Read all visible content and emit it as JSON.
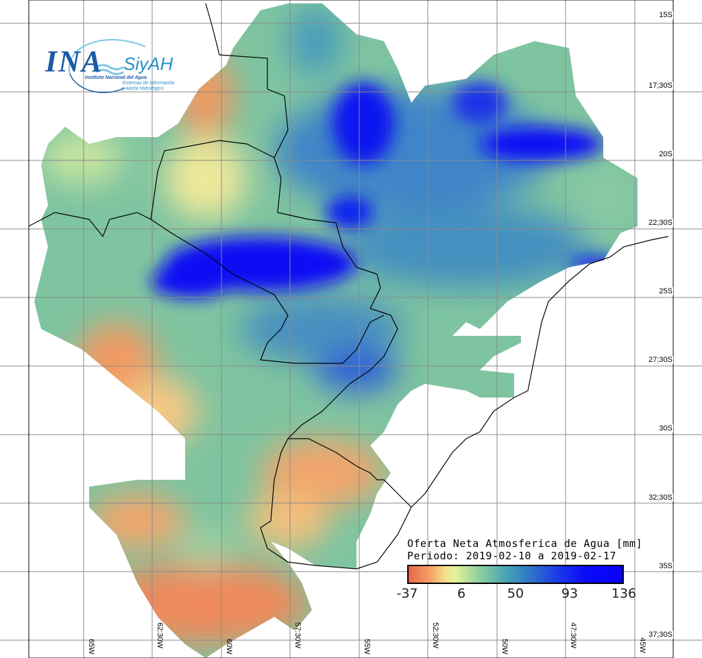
{
  "logo": {
    "acronym": "INA",
    "product": "SiyAH",
    "institute": "Instituto Nacional del Agua",
    "system_line1": "Sistemas de información",
    "system_line2": "y Alerta Hidrológico"
  },
  "legend": {
    "title": "Oferta Neta Atmosferica de Agua [mm]",
    "period": "Periodo: 2019-02-10 a 2019-02-17",
    "ticks": [
      "-37",
      "6",
      "50",
      "93",
      "136"
    ],
    "min": -37,
    "max": 136,
    "colors": [
      "#e8664a",
      "#f6a066",
      "#f7de8e",
      "#e3f29a",
      "#8fcf9e",
      "#4aa7b4",
      "#2f6fcc",
      "#1a3ae8",
      "#0a00ff"
    ]
  },
  "axes": {
    "lat_labels": [
      "15S",
      "17;30S",
      "20S",
      "22;30S",
      "25S",
      "27;30S",
      "30S",
      "32;30S",
      "35S",
      "37;30S"
    ],
    "lon_labels": [
      "65W",
      "62:30W",
      "60W",
      "57:30W",
      "55W",
      "52:30W",
      "50W",
      "47:30W",
      "45W"
    ]
  }
}
